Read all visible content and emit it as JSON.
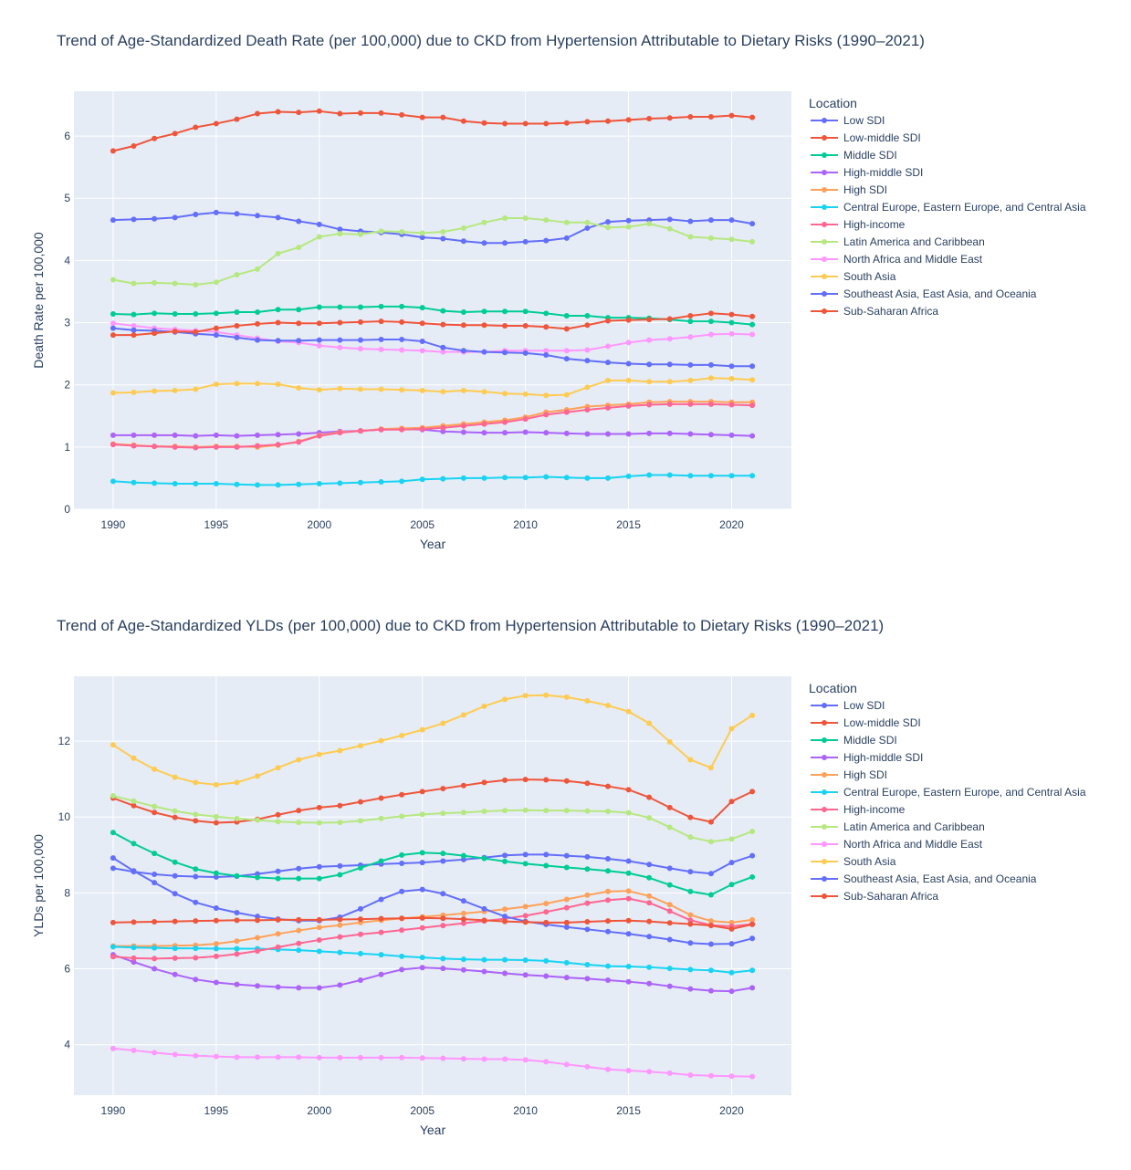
{
  "chart_data": [
    {
      "type": "line",
      "title": "Trend of Age-Standardized Death Rate (per 100,000) due to CKD from Hypertension Attributable to Dietary Risks (1990–2021)",
      "xlabel": "Year",
      "ylabel": "Death Rate per 100,000",
      "xlim": [
        1988.1,
        2022.9
      ],
      "ylim": [
        0,
        6.72
      ],
      "xticks": [
        1990,
        1995,
        2000,
        2005,
        2010,
        2015,
        2020
      ],
      "yticks": [
        0,
        1,
        2,
        3,
        4,
        5,
        6
      ],
      "legend_title": "Location",
      "legend_position": "right",
      "x": [
        1990,
        1991,
        1992,
        1993,
        1994,
        1995,
        1996,
        1997,
        1998,
        1999,
        2000,
        2001,
        2002,
        2003,
        2004,
        2005,
        2006,
        2007,
        2008,
        2009,
        2010,
        2011,
        2012,
        2013,
        2014,
        2015,
        2016,
        2017,
        2018,
        2019,
        2020,
        2021
      ],
      "series": [
        {
          "name": "Low SDI",
          "color": "#636efa",
          "values": [
            4.65,
            4.66,
            4.67,
            4.69,
            4.74,
            4.77,
            4.75,
            4.72,
            4.69,
            4.63,
            4.58,
            4.5,
            4.47,
            4.45,
            4.42,
            4.37,
            4.35,
            4.31,
            4.28,
            4.28,
            4.3,
            4.32,
            4.36,
            4.52,
            4.62,
            4.64,
            4.65,
            4.66,
            4.63,
            4.65,
            4.65,
            4.59
          ]
        },
        {
          "name": "Low-middle SDI",
          "color": "#ef553b",
          "values": [
            5.76,
            5.84,
            5.96,
            6.04,
            6.14,
            6.2,
            6.27,
            6.36,
            6.39,
            6.38,
            6.4,
            6.36,
            6.37,
            6.37,
            6.34,
            6.3,
            6.3,
            6.24,
            6.21,
            6.2,
            6.2,
            6.2,
            6.21,
            6.23,
            6.24,
            6.26,
            6.28,
            6.29,
            6.31,
            6.31,
            6.33,
            6.3
          ]
        },
        {
          "name": "Middle SDI",
          "color": "#00cc96",
          "values": [
            3.14,
            3.13,
            3.15,
            3.14,
            3.14,
            3.15,
            3.17,
            3.17,
            3.21,
            3.21,
            3.25,
            3.25,
            3.25,
            3.26,
            3.26,
            3.24,
            3.19,
            3.17,
            3.18,
            3.18,
            3.18,
            3.15,
            3.11,
            3.11,
            3.08,
            3.08,
            3.07,
            3.05,
            3.02,
            3.02,
            3.0,
            2.97
          ]
        },
        {
          "name": "High-middle SDI",
          "color": "#ab63fa",
          "values": [
            1.19,
            1.19,
            1.19,
            1.19,
            1.18,
            1.19,
            1.18,
            1.19,
            1.2,
            1.21,
            1.23,
            1.25,
            1.26,
            1.28,
            1.29,
            1.28,
            1.25,
            1.24,
            1.23,
            1.23,
            1.24,
            1.23,
            1.22,
            1.21,
            1.21,
            1.21,
            1.22,
            1.22,
            1.21,
            1.2,
            1.19,
            1.18
          ]
        },
        {
          "name": "High SDI",
          "color": "#ffa15a",
          "values": [
            1.05,
            1.03,
            1.01,
            1.01,
            1.0,
            1.01,
            1.01,
            1.0,
            1.03,
            1.09,
            1.19,
            1.24,
            1.26,
            1.29,
            1.3,
            1.31,
            1.34,
            1.37,
            1.4,
            1.43,
            1.48,
            1.56,
            1.6,
            1.65,
            1.67,
            1.69,
            1.72,
            1.73,
            1.73,
            1.73,
            1.72,
            1.72
          ]
        },
        {
          "name": "Central Europe, Eastern Europe, and Central Asia",
          "color": "#19d3f3",
          "values": [
            0.45,
            0.43,
            0.42,
            0.41,
            0.41,
            0.41,
            0.4,
            0.39,
            0.39,
            0.4,
            0.41,
            0.42,
            0.43,
            0.44,
            0.45,
            0.48,
            0.49,
            0.5,
            0.5,
            0.51,
            0.51,
            0.52,
            0.51,
            0.5,
            0.5,
            0.53,
            0.55,
            0.55,
            0.54,
            0.54,
            0.54,
            0.54
          ]
        },
        {
          "name": "High-income",
          "color": "#ff6692",
          "values": [
            1.04,
            1.02,
            1.01,
            1.0,
            0.99,
            1.0,
            1.0,
            1.02,
            1.04,
            1.08,
            1.18,
            1.23,
            1.26,
            1.28,
            1.28,
            1.29,
            1.31,
            1.34,
            1.37,
            1.4,
            1.45,
            1.52,
            1.56,
            1.6,
            1.63,
            1.66,
            1.68,
            1.69,
            1.69,
            1.69,
            1.68,
            1.67
          ]
        },
        {
          "name": "Latin America and Caribbean",
          "color": "#b6e880",
          "values": [
            3.69,
            3.63,
            3.64,
            3.63,
            3.61,
            3.65,
            3.77,
            3.86,
            4.11,
            4.21,
            4.38,
            4.43,
            4.42,
            4.47,
            4.46,
            4.44,
            4.46,
            4.52,
            4.61,
            4.68,
            4.68,
            4.65,
            4.61,
            4.61,
            4.53,
            4.54,
            4.59,
            4.51,
            4.38,
            4.36,
            4.34,
            4.3
          ]
        },
        {
          "name": "North Africa and Middle East",
          "color": "#ff97ff",
          "values": [
            2.99,
            2.95,
            2.91,
            2.89,
            2.87,
            2.85,
            2.8,
            2.75,
            2.7,
            2.68,
            2.63,
            2.6,
            2.58,
            2.57,
            2.56,
            2.55,
            2.53,
            2.53,
            2.53,
            2.55,
            2.55,
            2.55,
            2.55,
            2.56,
            2.62,
            2.68,
            2.72,
            2.74,
            2.77,
            2.81,
            2.82,
            2.81
          ]
        },
        {
          "name": "South Asia",
          "color": "#fecb52",
          "values": [
            1.87,
            1.88,
            1.9,
            1.91,
            1.93,
            2.01,
            2.02,
            2.02,
            2.01,
            1.95,
            1.92,
            1.94,
            1.93,
            1.93,
            1.92,
            1.91,
            1.89,
            1.91,
            1.89,
            1.86,
            1.85,
            1.83,
            1.84,
            1.96,
            2.07,
            2.07,
            2.05,
            2.05,
            2.07,
            2.11,
            2.1,
            2.08
          ]
        },
        {
          "name": "Southeast Asia, East Asia, and Oceania",
          "color": "#636efa",
          "values": [
            2.91,
            2.88,
            2.87,
            2.85,
            2.82,
            2.8,
            2.76,
            2.72,
            2.71,
            2.71,
            2.72,
            2.72,
            2.72,
            2.73,
            2.73,
            2.7,
            2.6,
            2.55,
            2.53,
            2.52,
            2.51,
            2.48,
            2.42,
            2.39,
            2.36,
            2.34,
            2.33,
            2.33,
            2.32,
            2.32,
            2.3,
            2.3
          ]
        },
        {
          "name": "Sub-Saharan Africa",
          "color": "#ef553b",
          "values": [
            2.8,
            2.8,
            2.83,
            2.86,
            2.85,
            2.91,
            2.95,
            2.98,
            3.0,
            2.99,
            2.99,
            3.0,
            3.01,
            3.02,
            3.01,
            2.99,
            2.97,
            2.96,
            2.96,
            2.95,
            2.95,
            2.93,
            2.9,
            2.96,
            3.03,
            3.04,
            3.05,
            3.06,
            3.11,
            3.15,
            3.13,
            3.1
          ]
        }
      ]
    },
    {
      "type": "line",
      "title": "Trend of Age-Standardized YLDs (per 100,000) due to CKD from Hypertension Attributable to Dietary Risks (1990–2021)",
      "xlabel": "Year",
      "ylabel": "YLDs per 100,000",
      "xlim": [
        1988.1,
        2022.9
      ],
      "ylim": [
        2.67,
        13.71
      ],
      "xticks": [
        1990,
        1995,
        2000,
        2005,
        2010,
        2015,
        2020
      ],
      "yticks": [
        4,
        6,
        8,
        10,
        12
      ],
      "legend_title": "Location",
      "legend_position": "right",
      "x": [
        1990,
        1991,
        1992,
        1993,
        1994,
        1995,
        1996,
        1997,
        1998,
        1999,
        2000,
        2001,
        2002,
        2003,
        2004,
        2005,
        2006,
        2007,
        2008,
        2009,
        2010,
        2011,
        2012,
        2013,
        2014,
        2015,
        2016,
        2017,
        2018,
        2019,
        2020,
        2021
      ],
      "series": [
        {
          "name": "Low SDI",
          "color": "#636efa",
          "values": [
            8.65,
            8.56,
            8.49,
            8.45,
            8.43,
            8.42,
            8.44,
            8.5,
            8.57,
            8.64,
            8.69,
            8.71,
            8.73,
            8.76,
            8.78,
            8.8,
            8.84,
            8.88,
            8.93,
            8.99,
            9.01,
            9.01,
            8.98,
            8.95,
            8.9,
            8.84,
            8.75,
            8.65,
            8.56,
            8.51,
            8.8,
            8.98
          ]
        },
        {
          "name": "Low-middle SDI",
          "color": "#ef553b",
          "values": [
            10.5,
            10.3,
            10.12,
            9.99,
            9.9,
            9.85,
            9.87,
            9.94,
            10.06,
            10.17,
            10.25,
            10.3,
            10.4,
            10.5,
            10.59,
            10.67,
            10.75,
            10.83,
            10.91,
            10.97,
            10.99,
            10.98,
            10.95,
            10.89,
            10.81,
            10.72,
            10.52,
            10.25,
            9.99,
            9.87,
            10.41,
            10.67
          ]
        },
        {
          "name": "Middle SDI",
          "color": "#00cc96",
          "values": [
            9.59,
            9.3,
            9.04,
            8.81,
            8.63,
            8.52,
            8.45,
            8.41,
            8.38,
            8.38,
            8.38,
            8.48,
            8.66,
            8.84,
            9.0,
            9.06,
            9.04,
            8.98,
            8.91,
            8.83,
            8.77,
            8.72,
            8.67,
            8.63,
            8.58,
            8.52,
            8.4,
            8.21,
            8.04,
            7.95,
            8.22,
            8.42
          ]
        },
        {
          "name": "High-middle SDI",
          "color": "#ab63fa",
          "values": [
            6.37,
            6.18,
            6.0,
            5.85,
            5.72,
            5.64,
            5.59,
            5.55,
            5.52,
            5.5,
            5.5,
            5.57,
            5.7,
            5.85,
            5.98,
            6.03,
            6.01,
            5.97,
            5.93,
            5.88,
            5.84,
            5.81,
            5.77,
            5.74,
            5.7,
            5.66,
            5.61,
            5.54,
            5.47,
            5.42,
            5.41,
            5.5
          ]
        },
        {
          "name": "High SDI",
          "color": "#ffa15a",
          "values": [
            6.6,
            6.6,
            6.6,
            6.61,
            6.62,
            6.66,
            6.73,
            6.82,
            6.92,
            7.01,
            7.09,
            7.15,
            7.22,
            7.28,
            7.33,
            7.37,
            7.41,
            7.46,
            7.51,
            7.57,
            7.64,
            7.72,
            7.83,
            7.94,
            8.04,
            8.05,
            7.92,
            7.69,
            7.42,
            7.26,
            7.22,
            7.29
          ]
        },
        {
          "name": "Central Europe, Eastern Europe, and Central Asia",
          "color": "#19d3f3",
          "values": [
            6.58,
            6.56,
            6.55,
            6.54,
            6.54,
            6.53,
            6.53,
            6.53,
            6.51,
            6.49,
            6.46,
            6.43,
            6.4,
            6.37,
            6.33,
            6.3,
            6.27,
            6.25,
            6.24,
            6.24,
            6.23,
            6.21,
            6.16,
            6.11,
            6.07,
            6.06,
            6.04,
            6.01,
            5.98,
            5.96,
            5.9,
            5.96
          ]
        },
        {
          "name": "High-income",
          "color": "#ff6692",
          "values": [
            6.32,
            6.28,
            6.27,
            6.28,
            6.29,
            6.33,
            6.39,
            6.47,
            6.57,
            6.67,
            6.76,
            6.84,
            6.91,
            6.96,
            7.02,
            7.08,
            7.14,
            7.2,
            7.26,
            7.32,
            7.4,
            7.5,
            7.61,
            7.73,
            7.81,
            7.85,
            7.74,
            7.52,
            7.28,
            7.15,
            7.12,
            7.18
          ]
        },
        {
          "name": "Latin America and Caribbean",
          "color": "#b6e880",
          "values": [
            10.56,
            10.42,
            10.28,
            10.16,
            10.07,
            10.01,
            9.96,
            9.92,
            9.88,
            9.86,
            9.85,
            9.86,
            9.9,
            9.96,
            10.02,
            10.07,
            10.1,
            10.12,
            10.15,
            10.17,
            10.18,
            10.17,
            10.17,
            10.16,
            10.15,
            10.11,
            9.98,
            9.73,
            9.47,
            9.35,
            9.42,
            9.62
          ]
        },
        {
          "name": "North Africa and Middle East",
          "color": "#ff97ff",
          "values": [
            3.9,
            3.85,
            3.79,
            3.74,
            3.71,
            3.69,
            3.67,
            3.67,
            3.67,
            3.67,
            3.66,
            3.66,
            3.66,
            3.66,
            3.66,
            3.65,
            3.64,
            3.63,
            3.62,
            3.62,
            3.6,
            3.55,
            3.48,
            3.42,
            3.35,
            3.32,
            3.29,
            3.25,
            3.2,
            3.18,
            3.17,
            3.16
          ]
        },
        {
          "name": "South Asia",
          "color": "#fecb52",
          "values": [
            11.9,
            11.55,
            11.26,
            11.05,
            10.91,
            10.85,
            10.91,
            11.08,
            11.3,
            11.51,
            11.65,
            11.75,
            11.88,
            12.01,
            12.15,
            12.3,
            12.47,
            12.69,
            12.92,
            13.1,
            13.2,
            13.21,
            13.16,
            13.06,
            12.94,
            12.78,
            12.47,
            11.98,
            11.51,
            11.3,
            12.33,
            12.68
          ]
        },
        {
          "name": "Southeast Asia, East Asia, and Oceania",
          "color": "#636efa",
          "values": [
            8.92,
            8.58,
            8.27,
            7.98,
            7.75,
            7.6,
            7.48,
            7.38,
            7.31,
            7.27,
            7.27,
            7.36,
            7.58,
            7.83,
            8.04,
            8.09,
            7.98,
            7.79,
            7.58,
            7.38,
            7.25,
            7.17,
            7.1,
            7.04,
            6.98,
            6.92,
            6.85,
            6.77,
            6.68,
            6.65,
            6.66,
            6.8
          ]
        },
        {
          "name": "Sub-Saharan Africa",
          "color": "#ef553b",
          "values": [
            7.22,
            7.23,
            7.24,
            7.25,
            7.26,
            7.27,
            7.28,
            7.28,
            7.29,
            7.29,
            7.29,
            7.3,
            7.31,
            7.32,
            7.33,
            7.34,
            7.33,
            7.31,
            7.28,
            7.25,
            7.23,
            7.22,
            7.22,
            7.24,
            7.26,
            7.27,
            7.25,
            7.21,
            7.18,
            7.14,
            7.05,
            7.17
          ]
        }
      ]
    }
  ]
}
